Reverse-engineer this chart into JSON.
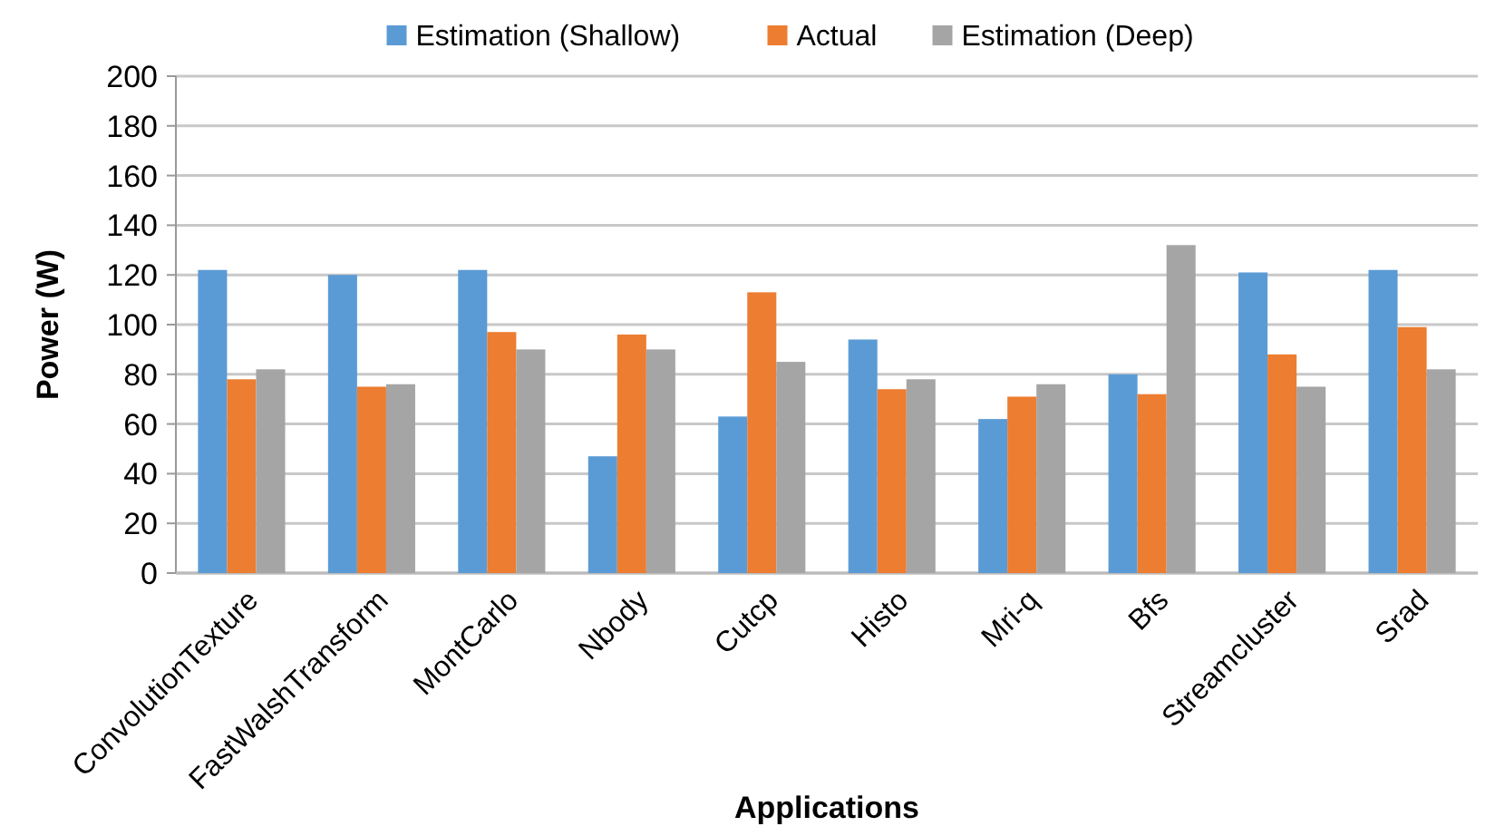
{
  "chart_data": {
    "type": "bar",
    "xlabel": "Applications",
    "ylabel": "Power (W)",
    "categories": [
      "ConvolutionTexture",
      "FastWalshTransform",
      "MontCarlo",
      "Nbody",
      "Cutcp",
      "Histo",
      "Mri-q",
      "Bfs",
      "Streamcluster",
      "Srad"
    ],
    "series": [
      {
        "name": "Estimation (Shallow)",
        "color": "#5b9bd5",
        "values": [
          122,
          120,
          122,
          47,
          63,
          94,
          62,
          80,
          121,
          122
        ]
      },
      {
        "name": "Actual",
        "color": "#ed7d31",
        "values": [
          78,
          75,
          97,
          96,
          113,
          74,
          71,
          72,
          88,
          99
        ]
      },
      {
        "name": "Estimation (Deep)",
        "color": "#a5a5a5",
        "values": [
          82,
          76,
          90,
          90,
          85,
          78,
          76,
          132,
          75,
          82
        ]
      }
    ],
    "ylim": [
      0,
      200
    ],
    "yticks": [
      0,
      20,
      40,
      60,
      80,
      100,
      120,
      140,
      160,
      180,
      200
    ],
    "grid": "y",
    "legend": "top"
  }
}
